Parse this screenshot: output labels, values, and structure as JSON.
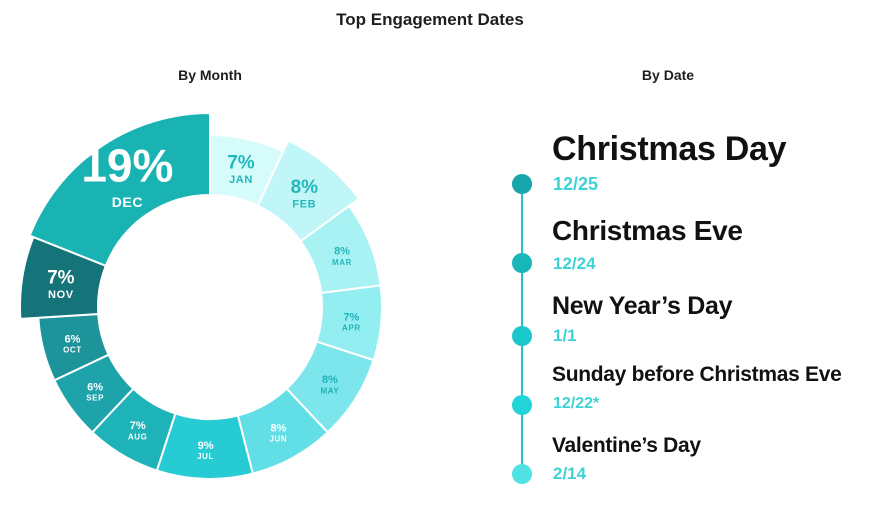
{
  "title": "Top Engagement Dates",
  "subtitles": {
    "by_month": "By Month",
    "by_date": "By Date"
  },
  "chart_data": [
    {
      "type": "pie",
      "style": "donut",
      "title": "By Month",
      "categories": [
        "JAN",
        "FEB",
        "MAR",
        "APR",
        "MAY",
        "JUN",
        "JUL",
        "AUG",
        "SEP",
        "OCT",
        "NOV",
        "DEC"
      ],
      "values": [
        7,
        8,
        8,
        7,
        8,
        8,
        9,
        7,
        6,
        6,
        7,
        19
      ],
      "labels": [
        "7%",
        "8%",
        "8%",
        "7%",
        "8%",
        "8%",
        "9%",
        "7%",
        "6%",
        "6%",
        "7%",
        "19%"
      ],
      "highlighted": [
        "DEC",
        "NOV",
        "FEB"
      ],
      "colors": [
        "#d6fbfb",
        "#c0f6f8",
        "#a9f2f4",
        "#93eef2",
        "#7ce6ec",
        "#62dfe6",
        "#26cbd3",
        "#1eb2b9",
        "#1ea3aa",
        "#1d9499",
        "#15737a",
        "#19b3b3"
      ],
      "label_colors": [
        "#22b8bc",
        "#22b8bc",
        "#22b8bc",
        "#20b3b8",
        "#20b0b6",
        "#ffffff",
        "#ffffff",
        "#ffffff",
        "#ffffff",
        "#ffffff",
        "#ffffff",
        "#ffffff"
      ]
    },
    {
      "type": "table",
      "title": "By Date",
      "rows": [
        {
          "name": "Christmas Day",
          "date": "12/25"
        },
        {
          "name": "Christmas Eve",
          "date": "12/24"
        },
        {
          "name": "New Year’s Day",
          "date": "1/1"
        },
        {
          "name": "Sunday before Christmas Eve",
          "date": "12/22*"
        },
        {
          "name": "Valentine’s Day",
          "date": "2/14"
        }
      ],
      "dot_colors": [
        "#17a6ab",
        "#18b5ba",
        "#1ac7cc",
        "#22d3d8",
        "#4fe1e4"
      ],
      "line_color": "#22c3c8",
      "date_color": "#3cd3d6"
    }
  ]
}
